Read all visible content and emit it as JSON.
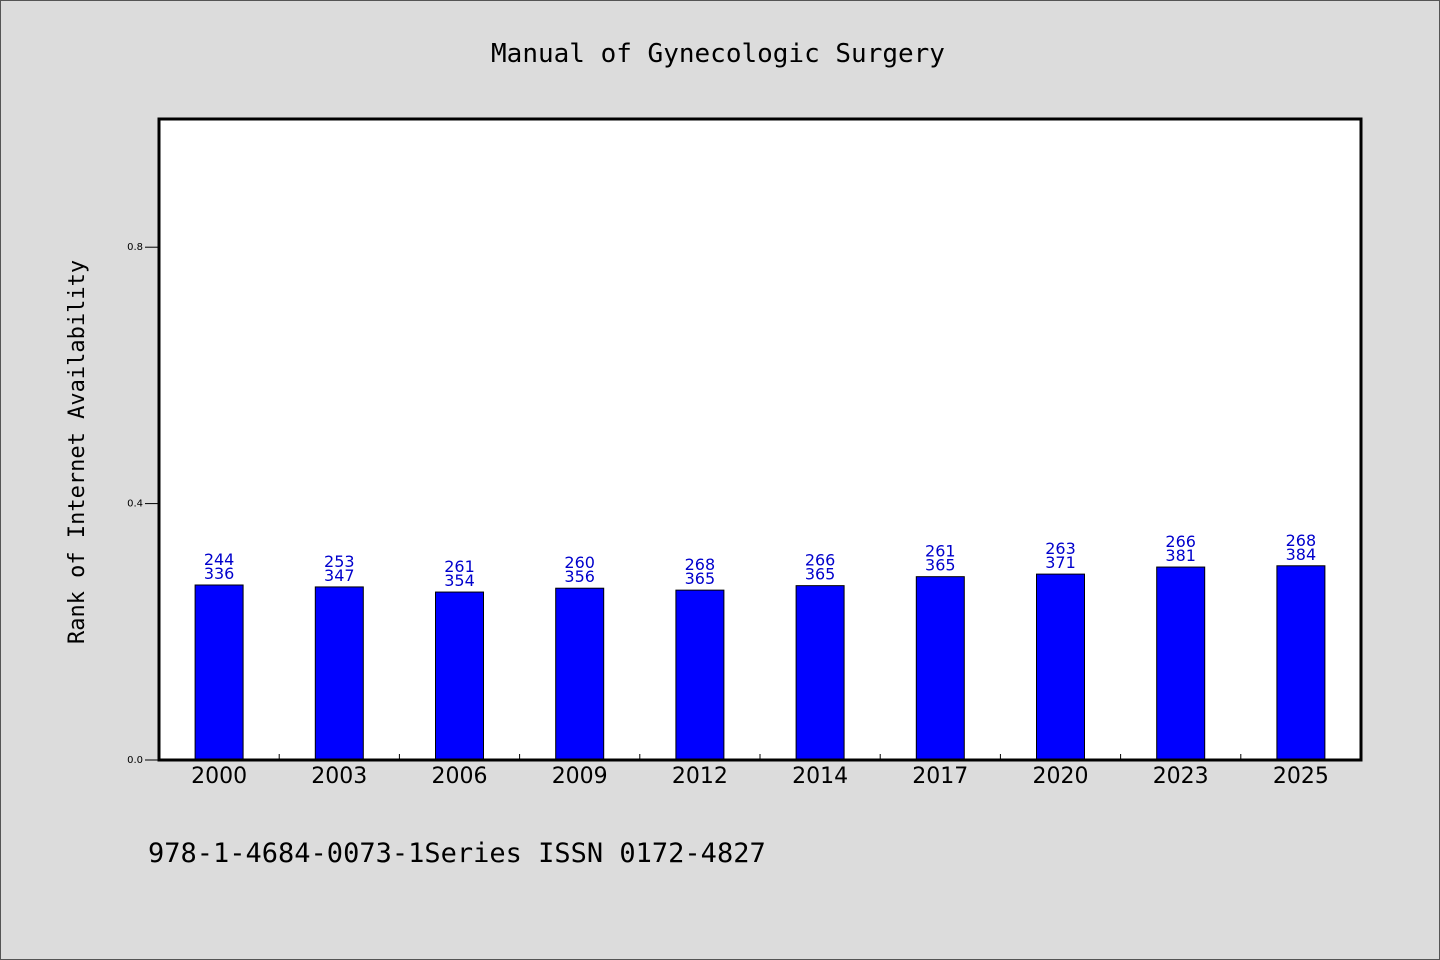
{
  "chart_data": {
    "type": "bar",
    "title": "Manual of Gynecologic Surgery",
    "xlabel": "",
    "ylabel": "Rank of Internet Availability",
    "ylim": [
      0,
      1.0
    ],
    "yticks": [
      "0.0",
      "0.4",
      "0.8"
    ],
    "ytick_values": [
      0.0,
      0.4,
      0.8
    ],
    "categories": [
      "2000",
      "2003",
      "2006",
      "2009",
      "2012",
      "2014",
      "2017",
      "2020",
      "2023",
      "2025"
    ],
    "values": [
      0.273,
      0.27,
      0.262,
      0.268,
      0.265,
      0.272,
      0.286,
      0.29,
      0.301,
      0.303
    ],
    "data_labels": [
      [
        "244",
        "336"
      ],
      [
        "253",
        "347"
      ],
      [
        "261",
        "354"
      ],
      [
        "260",
        "356"
      ],
      [
        "268",
        "365"
      ],
      [
        "266",
        "365"
      ],
      [
        "261",
        "365"
      ],
      [
        "263",
        "371"
      ],
      [
        "266",
        "381"
      ],
      [
        "268",
        "384"
      ]
    ],
    "bar_color": "#0000ff",
    "label_color": "#0000cc",
    "grid": false
  },
  "footer": "978-1-4684-0073-1Series ISSN 0172-4827"
}
